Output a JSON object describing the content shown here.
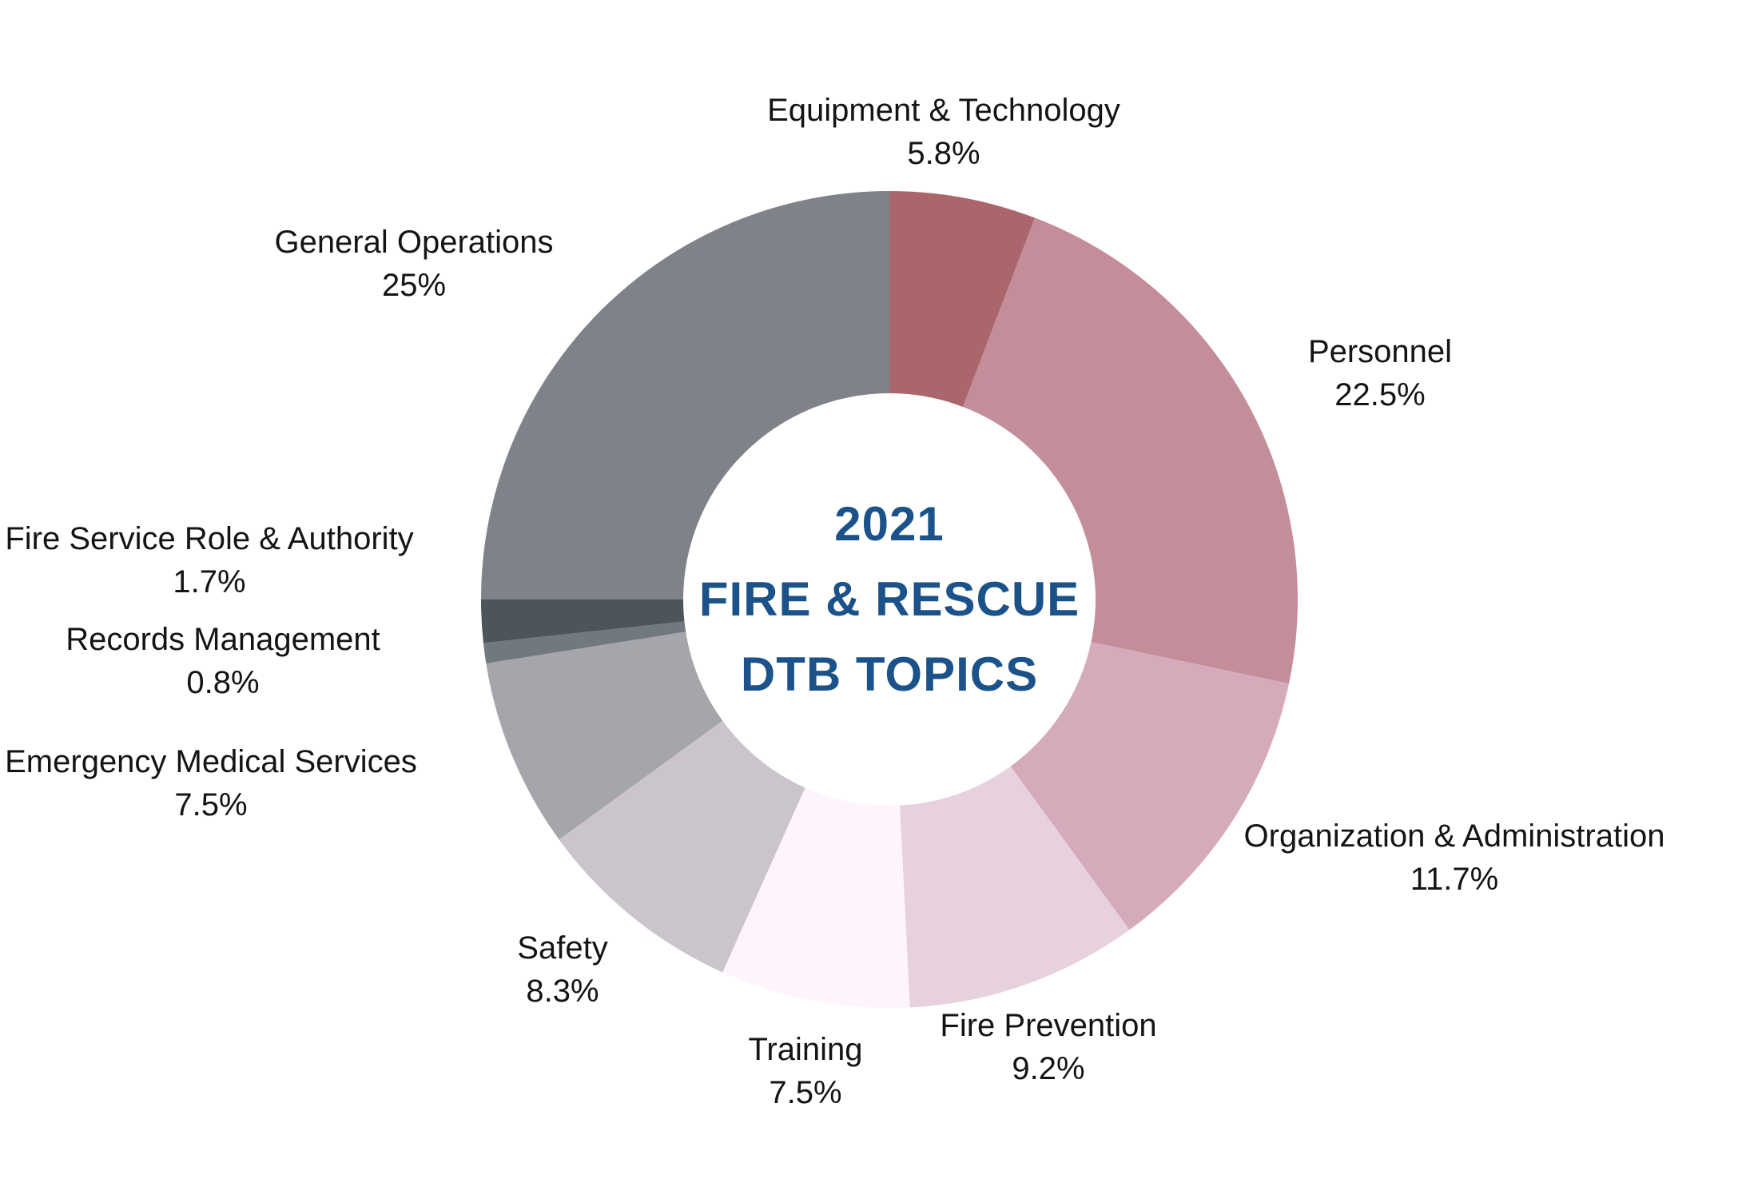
{
  "chart_data": {
    "type": "pie",
    "subtype": "donut",
    "title": "2021 FIRE & RESCUE DTB TOPICS",
    "center_title_lines": [
      "2021",
      "FIRE & RESCUE",
      "DTB TOPICS"
    ],
    "title_color": "#1a5289",
    "label_color": "#141414",
    "start_angle_deg": 0,
    "direction": "clockwise",
    "hole_ratio": 0.505,
    "legend_position": "none",
    "labels_position": "outside",
    "slices": [
      {
        "id": "equipment-technology",
        "label": "Equipment & Technology",
        "value": 5.8,
        "pct_label": "5.8%",
        "color": "#ab666b"
      },
      {
        "id": "personnel",
        "label": "Personnel",
        "value": 22.5,
        "pct_label": "22.5%",
        "color": "#c38d99"
      },
      {
        "id": "organization-administration",
        "label": "Organization & Administration",
        "value": 11.7,
        "pct_label": "11.7%",
        "color": "#d5aaba"
      },
      {
        "id": "fire-prevention",
        "label": "Fire Prevention",
        "value": 9.2,
        "pct_label": "9.2%",
        "color": "#e8d1df"
      },
      {
        "id": "training",
        "label": "Training",
        "value": 7.5,
        "pct_label": "7.5%",
        "color": "#fdf5fb"
      },
      {
        "id": "safety",
        "label": "Safety",
        "value": 8.3,
        "pct_label": "8.3%",
        "color": "#cbc4cc"
      },
      {
        "id": "emergency-medical-services",
        "label": "Emergency Medical Services",
        "value": 7.5,
        "pct_label": "7.5%",
        "color": "#a5a5ac"
      },
      {
        "id": "records-management",
        "label": "Records Management",
        "value": 0.8,
        "pct_label": "0.8%",
        "color": "#71787f"
      },
      {
        "id": "fire-service-role-authority",
        "label": "Fire Service Role & Authority",
        "value": 1.7,
        "pct_label": "1.7%",
        "color": "#4c555b"
      },
      {
        "id": "general-operations",
        "label": "General Operations",
        "value": 25,
        "pct_label": "25%",
        "color": "#7f8289"
      }
    ]
  }
}
